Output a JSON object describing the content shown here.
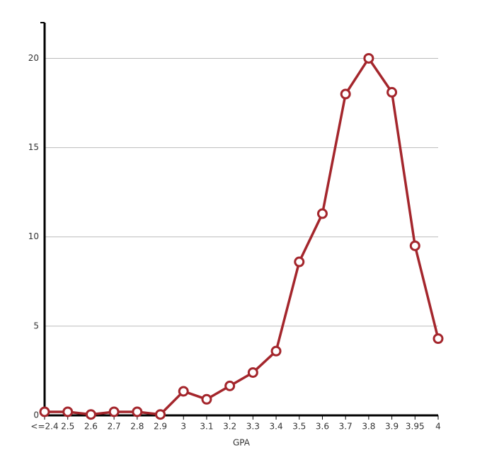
{
  "chart_data": {
    "type": "line",
    "x_label": "GPA",
    "categories": [
      "<=2.4",
      "2.5",
      "2.6",
      "2.7",
      "2.8",
      "2.9",
      "3",
      "3.1",
      "3.2",
      "3.3",
      "3.4",
      "3.5",
      "3.6",
      "3.7",
      "3.8",
      "3.9",
      "3.95",
      "4"
    ],
    "series": [
      {
        "color": "#a4262c",
        "values": [
          0.2,
          0.2,
          0.05,
          0.2,
          0.2,
          0.05,
          1.35,
          0.9,
          1.65,
          2.4,
          3.6,
          8.6,
          11.3,
          18,
          20,
          18.1,
          9.5,
          4.3
        ]
      }
    ],
    "ylim": [
      0,
      22
    ],
    "yticks": [
      0,
      5,
      10,
      15,
      20
    ],
    "grid": true
  }
}
